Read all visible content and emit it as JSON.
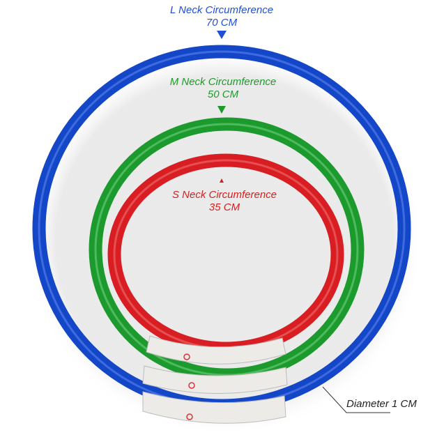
{
  "labels": {
    "large": {
      "title": "L Neck Circumference",
      "size": "70 CM",
      "color": "#1f4fd6"
    },
    "medium": {
      "title": "M Neck Circumference",
      "size": "50 CM",
      "color": "#1f9a2a"
    },
    "small": {
      "title": "S Neck Circumference",
      "size": "35 CM",
      "color": "#d42020"
    },
    "diameter": "Diameter 1 CM"
  },
  "rings": {
    "large": "#1446c8",
    "medium": "#1c9a2e",
    "small": "#d81e22",
    "clasp": "#ecebe8"
  },
  "icons": [
    "power-button-icon"
  ]
}
